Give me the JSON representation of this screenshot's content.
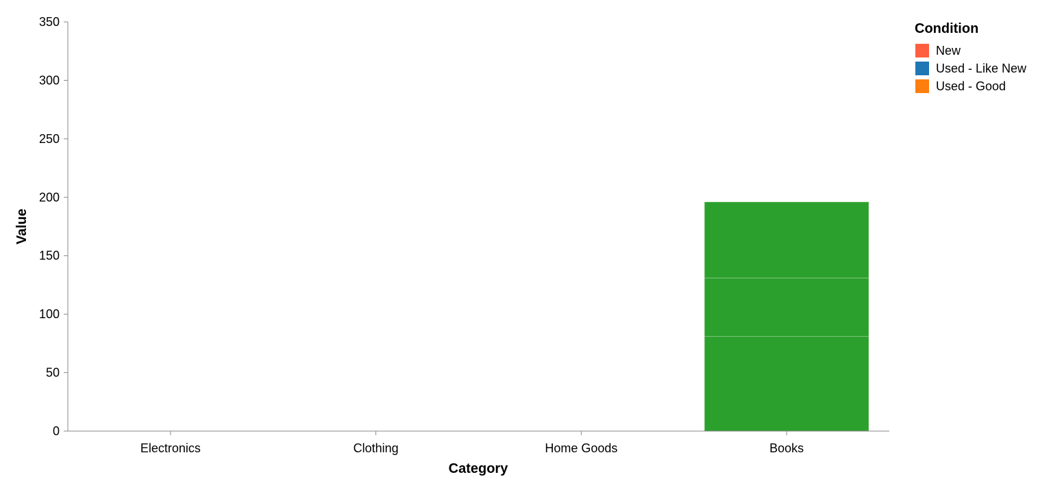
{
  "chart_data": {
    "type": "bar",
    "stacked": true,
    "xlabel": "Category",
    "ylabel": "Value",
    "categories": [
      "Electronics",
      "Clothing",
      "Home Goods",
      "Books"
    ],
    "ylim": [
      0,
      350
    ],
    "yticks": [
      0,
      50,
      100,
      150,
      200,
      250,
      300,
      350
    ],
    "legend": {
      "title": "Condition",
      "placement": "top-right",
      "entries": [
        {
          "label": "New",
          "color": "#ff5f3f"
        },
        {
          "label": "Used - Like New",
          "color": "#1f77b4"
        },
        {
          "label": "Used - Good",
          "color": "#ff7f0e"
        }
      ]
    },
    "series": [
      {
        "name": "New",
        "color": "#2ca02c",
        "values": [
          0,
          0,
          0,
          81
        ]
      },
      {
        "name": "Used - Like New",
        "color": "#2ca02c",
        "values": [
          0,
          0,
          0,
          50
        ]
      },
      {
        "name": "Used - Good",
        "color": "#2ca02c",
        "values": [
          0,
          0,
          0,
          65
        ]
      }
    ],
    "grid": false
  }
}
